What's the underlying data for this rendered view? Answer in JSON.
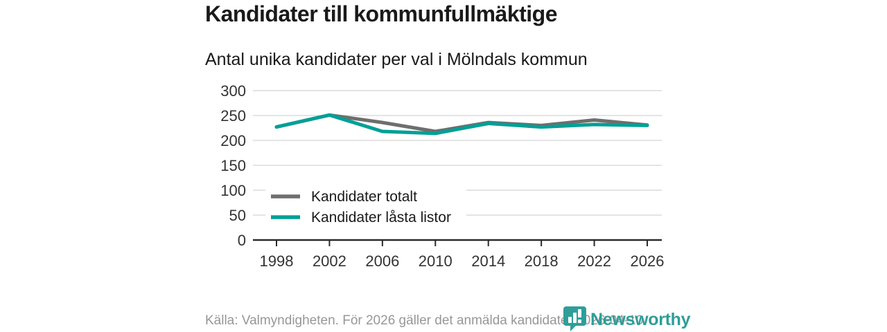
{
  "title": "Kandidater till kommunfullmäktige",
  "subtitle": "Antal unika kandidater per val i Mölndals kommun",
  "footer": {
    "source_text": "Källa: Valmyndigheten. För 2026 gäller det anmälda kandidater 2026-04-10."
  },
  "branding": {
    "name": "Newsworthy",
    "logo_icon": "bar-chart-speech-bubble-icon",
    "color": "#2f9e99"
  },
  "colors": {
    "series_totalt": "#6e6e6e",
    "series_lasta": "#00a096",
    "gridline": "#dcdcdc",
    "axis_line": "#2a2a2a",
    "axis_text": "#333333",
    "title_text": "#1a1a1a",
    "muted_text": "#979797"
  },
  "chart_data": {
    "type": "line",
    "x": [
      1998,
      2002,
      2006,
      2010,
      2014,
      2018,
      2022,
      2026
    ],
    "series": [
      {
        "name": "Kandidater totalt",
        "color": "#6e6e6e",
        "values": [
          227,
          251,
          236,
          218,
          236,
          230,
          241,
          231
        ]
      },
      {
        "name": "Kandidater låsta listor",
        "color": "#00a096",
        "values": [
          227,
          251,
          218,
          214,
          234,
          227,
          232,
          230
        ]
      }
    ],
    "title": "Kandidater till kommunfullmäktige",
    "subtitle": "Antal unika kandidater per val i Mölndals kommun",
    "xlabel": "",
    "ylabel": "",
    "ylim": [
      0,
      300
    ],
    "yticks": [
      0,
      50,
      100,
      150,
      200,
      250,
      300
    ],
    "grid": true,
    "legend_position": "inside-bottom-left"
  }
}
